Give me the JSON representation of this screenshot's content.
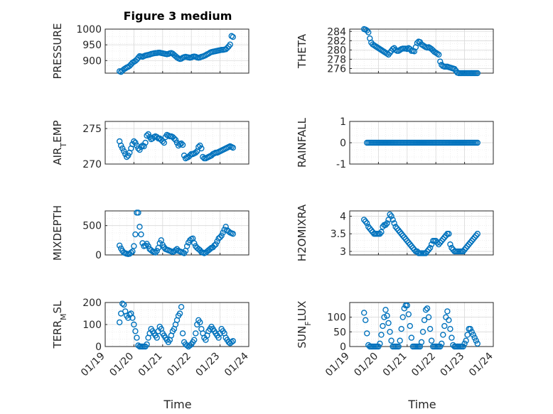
{
  "title": "Figure 3 medium",
  "xlabel": "Time",
  "marker_color": "#0072BD",
  "chart_data": [
    {
      "type": "scatter",
      "ylabel_main": "PRESSURE",
      "ylabel_sub": "",
      "ylabel_tail": "",
      "ylim": [
        860,
        1000
      ],
      "yticks": [
        900,
        950,
        1000
      ],
      "xlim": [
        0,
        5
      ],
      "x": [
        0.5,
        0.55,
        0.6,
        0.65,
        0.7,
        0.75,
        0.8,
        0.85,
        0.9,
        0.95,
        1.0,
        1.05,
        1.1,
        1.15,
        1.2,
        1.25,
        1.3,
        1.35,
        1.4,
        1.45,
        1.5,
        1.55,
        1.6,
        1.65,
        1.7,
        1.75,
        1.8,
        1.85,
        1.9,
        1.95,
        2.0,
        2.05,
        2.1,
        2.15,
        2.2,
        2.25,
        2.3,
        2.35,
        2.4,
        2.45,
        2.5,
        2.55,
        2.6,
        2.65,
        2.7,
        2.75,
        2.8,
        2.85,
        2.9,
        2.95,
        3.0,
        3.05,
        3.1,
        3.15,
        3.2,
        3.25,
        3.3,
        3.35,
        3.4,
        3.45,
        3.5,
        3.55,
        3.6,
        3.65,
        3.7,
        3.75,
        3.8,
        3.85,
        3.9,
        3.95,
        4.0,
        4.05,
        4.1,
        4.15,
        4.2,
        4.25,
        4.3,
        4.35,
        4.4,
        4.45
      ],
      "y": [
        866,
        864,
        868,
        872,
        875,
        878,
        880,
        883,
        888,
        893,
        896,
        899,
        903,
        909,
        914,
        913,
        912,
        914,
        916,
        917,
        918,
        919,
        921,
        922,
        923,
        924,
        924,
        925,
        925,
        924,
        923,
        922,
        921,
        920,
        921,
        923,
        924,
        922,
        918,
        914,
        910,
        907,
        905,
        906,
        909,
        911,
        912,
        911,
        910,
        909,
        910,
        912,
        913,
        912,
        910,
        909,
        910,
        912,
        913,
        915,
        917,
        920,
        922,
        925,
        927,
        928,
        929,
        930,
        931,
        932,
        933,
        934,
        934,
        935,
        936,
        940,
        945,
        951,
        978,
        975
      ]
    },
    {
      "type": "scatter",
      "ylabel_main": "THETA",
      "ylabel_sub": "",
      "ylabel_tail": "",
      "ylim": [
        275,
        284.5
      ],
      "yticks": [
        276,
        278,
        280,
        282,
        284
      ],
      "xlim": [
        0,
        5
      ],
      "x": [
        0.5,
        0.55,
        0.6,
        0.65,
        0.7,
        0.75,
        0.8,
        0.85,
        0.9,
        0.95,
        1.0,
        1.05,
        1.1,
        1.15,
        1.2,
        1.25,
        1.3,
        1.35,
        1.4,
        1.45,
        1.5,
        1.55,
        1.6,
        1.65,
        1.7,
        1.75,
        1.8,
        1.85,
        1.9,
        1.95,
        2.0,
        2.05,
        2.1,
        2.15,
        2.2,
        2.25,
        2.3,
        2.35,
        2.4,
        2.45,
        2.5,
        2.55,
        2.6,
        2.65,
        2.7,
        2.75,
        2.8,
        2.85,
        2.9,
        2.95,
        3.0,
        3.05,
        3.1,
        3.15,
        3.2,
        3.25,
        3.3,
        3.35,
        3.4,
        3.45,
        3.5,
        3.55,
        3.6,
        3.65,
        3.7,
        3.75,
        3.8,
        3.85,
        3.9,
        3.95,
        4.0,
        4.05,
        4.1,
        4.15,
        4.2,
        4.25,
        4.3,
        4.35,
        4.4,
        4.45
      ],
      "y": [
        284.6,
        284.4,
        284.2,
        283.8,
        282.5,
        281.6,
        281.2,
        281.0,
        280.8,
        280.6,
        280.4,
        280.2,
        280.0,
        279.8,
        279.6,
        279.4,
        279.2,
        279.0,
        279.4,
        279.8,
        280.2,
        280.4,
        280.0,
        279.8,
        279.8,
        280.0,
        280.2,
        280.3,
        280.3,
        280.3,
        280.2,
        280.4,
        280.2,
        279.8,
        279.8,
        279.7,
        280.6,
        281.5,
        281.8,
        281.7,
        281.2,
        281.0,
        280.8,
        280.6,
        280.5,
        280.6,
        280.4,
        280.2,
        279.9,
        279.6,
        279.4,
        279.2,
        279.0,
        277.5,
        276.8,
        276.5,
        276.4,
        276.4,
        276.4,
        276.3,
        276.2,
        276.1,
        276.0,
        275.9,
        275.5,
        275.1,
        275.0,
        275.0,
        275.0,
        275.0,
        275.0,
        275.0,
        275.0,
        275.0,
        275.0,
        275.0,
        275.0,
        275.0,
        275.0,
        275.0
      ]
    },
    {
      "type": "scatter",
      "ylabel_main": "AIR",
      "ylabel_sub": "T",
      "ylabel_tail": "EMP",
      "ylim": [
        270,
        276
      ],
      "yticks": [
        270,
        275
      ],
      "xlim": [
        0,
        5
      ],
      "x": [
        0.5,
        0.55,
        0.6,
        0.65,
        0.7,
        0.75,
        0.8,
        0.85,
        0.9,
        0.95,
        1.0,
        1.05,
        1.1,
        1.15,
        1.2,
        1.25,
        1.3,
        1.35,
        1.4,
        1.45,
        1.5,
        1.55,
        1.6,
        1.65,
        1.7,
        1.75,
        1.8,
        1.85,
        1.9,
        1.95,
        2.0,
        2.05,
        2.1,
        2.15,
        2.2,
        2.25,
        2.3,
        2.35,
        2.4,
        2.45,
        2.5,
        2.55,
        2.6,
        2.65,
        2.7,
        2.75,
        2.8,
        2.85,
        2.9,
        2.95,
        3.0,
        3.05,
        3.1,
        3.15,
        3.2,
        3.25,
        3.3,
        3.35,
        3.4,
        3.45,
        3.5,
        3.55,
        3.6,
        3.65,
        3.7,
        3.75,
        3.8,
        3.85,
        3.9,
        3.95,
        4.0,
        4.05,
        4.1,
        4.15,
        4.2,
        4.25,
        4.3,
        4.35,
        4.4,
        4.45
      ],
      "y": [
        273.2,
        272.6,
        272.2,
        271.8,
        271.4,
        271.0,
        271.2,
        271.6,
        272.2,
        272.8,
        273.2,
        273.0,
        272.6,
        272.2,
        272.0,
        272.4,
        272.6,
        272.5,
        273.0,
        274.0,
        274.2,
        273.8,
        273.5,
        273.6,
        273.8,
        273.9,
        273.8,
        273.6,
        273.6,
        273.4,
        273.2,
        273.0,
        273.8,
        274.1,
        274.0,
        273.9,
        273.9,
        273.8,
        273.6,
        273.4,
        273.0,
        272.6,
        272.8,
        272.9,
        272.7,
        271.2,
        270.8,
        270.9,
        271.0,
        271.2,
        271.4,
        271.4,
        271.5,
        271.6,
        271.8,
        272.4,
        272.6,
        272.2,
        271.0,
        270.8,
        270.8,
        270.9,
        271.0,
        271.1,
        271.2,
        271.4,
        271.5,
        271.6,
        271.6,
        271.7,
        271.8,
        271.9,
        272.0,
        272.1,
        272.2,
        272.3,
        272.4,
        272.5,
        272.4,
        272.3
      ]
    },
    {
      "type": "scatter",
      "ylabel_main": "RAINFALL",
      "ylabel_sub": "",
      "ylabel_tail": "",
      "ylim": [
        -1,
        1
      ],
      "yticks": [
        -1,
        0,
        1
      ],
      "xlim": [
        0,
        5
      ],
      "x": [
        0.6,
        0.65,
        0.7,
        0.75,
        0.8,
        0.85,
        0.9,
        0.95,
        1.0,
        1.05,
        1.1,
        1.15,
        1.2,
        1.25,
        1.3,
        1.35,
        1.4,
        1.45,
        1.5,
        1.55,
        1.6,
        1.65,
        1.7,
        1.75,
        1.8,
        1.85,
        1.9,
        1.95,
        2.0,
        2.05,
        2.1,
        2.15,
        2.2,
        2.25,
        2.3,
        2.35,
        2.4,
        2.45,
        2.5,
        2.55,
        2.6,
        2.65,
        2.7,
        2.75,
        2.8,
        2.85,
        2.9,
        2.95,
        3.0,
        3.05,
        3.1,
        3.15,
        3.2,
        3.25,
        3.3,
        3.35,
        3.4,
        3.45,
        3.5,
        3.55,
        3.6,
        3.65,
        3.7,
        3.75,
        3.8,
        3.85,
        3.9,
        3.95,
        4.0,
        4.05,
        4.1,
        4.15,
        4.2,
        4.25,
        4.3,
        4.35,
        4.4,
        4.45
      ],
      "y": [
        0,
        0,
        0,
        0,
        0,
        0,
        0,
        0,
        0,
        0,
        0,
        0,
        0,
        0,
        0,
        0,
        0,
        0,
        0,
        0,
        0,
        0,
        0,
        0,
        0,
        0,
        0,
        0,
        0,
        0,
        0,
        0,
        0,
        0,
        0,
        0,
        0,
        0,
        0,
        0,
        0,
        0,
        0,
        0,
        0,
        0,
        0,
        0,
        0,
        0,
        0,
        0,
        0,
        0,
        0,
        0,
        0,
        0,
        0,
        0,
        0,
        0,
        0,
        0,
        0,
        0,
        0,
        0,
        0,
        0,
        0,
        0,
        0,
        0,
        0,
        0,
        0,
        0
      ]
    },
    {
      "type": "scatter",
      "ylabel_main": "MIXDEPTH",
      "ylabel_sub": "",
      "ylabel_tail": "",
      "ylim": [
        0,
        750
      ],
      "yticks": [
        0,
        500
      ],
      "xlim": [
        0,
        5
      ],
      "x": [
        0.5,
        0.55,
        0.6,
        0.65,
        0.7,
        0.75,
        0.8,
        0.85,
        0.9,
        0.95,
        1.0,
        1.05,
        1.1,
        1.15,
        1.2,
        1.25,
        1.3,
        1.35,
        1.4,
        1.45,
        1.5,
        1.55,
        1.6,
        1.65,
        1.7,
        1.75,
        1.8,
        1.85,
        1.9,
        1.95,
        2.0,
        2.05,
        2.1,
        2.15,
        2.2,
        2.25,
        2.3,
        2.35,
        2.4,
        2.45,
        2.5,
        2.55,
        2.6,
        2.65,
        2.7,
        2.75,
        2.8,
        2.85,
        2.9,
        2.95,
        3.0,
        3.05,
        3.1,
        3.15,
        3.2,
        3.25,
        3.3,
        3.35,
        3.4,
        3.45,
        3.5,
        3.55,
        3.6,
        3.65,
        3.7,
        3.75,
        3.8,
        3.85,
        3.9,
        3.95,
        4.0,
        4.05,
        4.1,
        4.15,
        4.2,
        4.25,
        4.3,
        4.35,
        4.4,
        4.45
      ],
      "y": [
        160,
        110,
        70,
        40,
        30,
        20,
        15,
        20,
        40,
        60,
        150,
        350,
        720,
        720,
        480,
        350,
        200,
        150,
        160,
        190,
        150,
        100,
        80,
        60,
        50,
        40,
        70,
        120,
        200,
        250,
        170,
        130,
        100,
        90,
        80,
        70,
        60,
        50,
        60,
        80,
        100,
        70,
        60,
        50,
        40,
        30,
        70,
        150,
        210,
        250,
        270,
        280,
        200,
        150,
        120,
        100,
        80,
        50,
        40,
        30,
        40,
        60,
        80,
        100,
        120,
        130,
        160,
        180,
        230,
        280,
        300,
        330,
        380,
        430,
        480,
        420,
        400,
        380,
        370,
        360
      ]
    },
    {
      "type": "scatter",
      "ylabel_main": "H2OMIXRA",
      "ylabel_sub": "",
      "ylabel_tail": "",
      "ylim": [
        2.9,
        4.15
      ],
      "yticks": [
        3,
        3.5,
        4
      ],
      "xlim": [
        0,
        5
      ],
      "x": [
        0.5,
        0.55,
        0.6,
        0.65,
        0.7,
        0.75,
        0.8,
        0.85,
        0.9,
        0.95,
        1.0,
        1.05,
        1.1,
        1.15,
        1.2,
        1.25,
        1.3,
        1.35,
        1.4,
        1.45,
        1.5,
        1.55,
        1.6,
        1.65,
        1.7,
        1.75,
        1.8,
        1.85,
        1.9,
        1.95,
        2.0,
        2.05,
        2.1,
        2.15,
        2.2,
        2.25,
        2.3,
        2.35,
        2.4,
        2.45,
        2.5,
        2.55,
        2.6,
        2.65,
        2.7,
        2.75,
        2.8,
        2.85,
        2.9,
        2.95,
        3.0,
        3.05,
        3.1,
        3.15,
        3.2,
        3.25,
        3.3,
        3.35,
        3.4,
        3.45,
        3.5,
        3.55,
        3.6,
        3.65,
        3.7,
        3.75,
        3.8,
        3.85,
        3.9,
        3.95,
        4.0,
        4.05,
        4.1,
        4.15,
        4.2,
        4.25,
        4.3,
        4.35,
        4.4,
        4.45
      ],
      "y": [
        3.9,
        3.85,
        3.8,
        3.7,
        3.65,
        3.6,
        3.55,
        3.5,
        3.5,
        3.5,
        3.5,
        3.5,
        3.55,
        3.7,
        3.75,
        3.75,
        3.8,
        3.9,
        4.05,
        4.0,
        3.9,
        3.8,
        3.7,
        3.65,
        3.6,
        3.55,
        3.5,
        3.45,
        3.4,
        3.35,
        3.3,
        3.25,
        3.2,
        3.15,
        3.1,
        3.05,
        3.0,
        3.0,
        2.95,
        2.95,
        2.95,
        2.95,
        2.95,
        2.95,
        3.0,
        3.05,
        3.1,
        3.2,
        3.3,
        3.3,
        3.3,
        3.25,
        3.2,
        3.25,
        3.3,
        3.35,
        3.4,
        3.45,
        3.5,
        3.5,
        3.2,
        3.1,
        3.05,
        3.0,
        3.0,
        3.0,
        3.0,
        3.0,
        3.0,
        3.0,
        3.05,
        3.1,
        3.15,
        3.2,
        3.25,
        3.3,
        3.35,
        3.4,
        3.45,
        3.5
      ]
    },
    {
      "type": "scatter",
      "ylabel_main": "TERR",
      "ylabel_sub": "M",
      "ylabel_tail": "SL",
      "ylim": [
        0,
        200
      ],
      "yticks": [
        0,
        100,
        200
      ],
      "xlim": [
        0,
        5
      ],
      "x": [
        0.5,
        0.55,
        0.6,
        0.65,
        0.7,
        0.75,
        0.8,
        0.85,
        0.9,
        0.95,
        1.0,
        1.05,
        1.1,
        1.15,
        1.2,
        1.25,
        1.3,
        1.35,
        1.4,
        1.45,
        1.5,
        1.55,
        1.6,
        1.65,
        1.7,
        1.75,
        1.8,
        1.85,
        1.9,
        1.95,
        2.0,
        2.05,
        2.1,
        2.15,
        2.2,
        2.25,
        2.3,
        2.35,
        2.4,
        2.45,
        2.5,
        2.55,
        2.6,
        2.65,
        2.7,
        2.75,
        2.8,
        2.85,
        2.9,
        2.95,
        3.0,
        3.05,
        3.1,
        3.15,
        3.2,
        3.25,
        3.3,
        3.35,
        3.4,
        3.45,
        3.5,
        3.55,
        3.6,
        3.65,
        3.7,
        3.75,
        3.8,
        3.85,
        3.9,
        3.95,
        4.0,
        4.05,
        4.1,
        4.15,
        4.2,
        4.25,
        4.3,
        4.35,
        4.4,
        4.45
      ],
      "y": [
        110,
        150,
        195,
        190,
        160,
        140,
        130,
        145,
        150,
        130,
        100,
        70,
        40,
        5,
        0,
        0,
        0,
        0,
        0,
        10,
        40,
        60,
        80,
        70,
        60,
        50,
        40,
        70,
        90,
        80,
        60,
        50,
        40,
        30,
        20,
        30,
        50,
        70,
        80,
        100,
        120,
        140,
        150,
        180,
        60,
        20,
        10,
        5,
        0,
        5,
        10,
        20,
        30,
        60,
        100,
        120,
        110,
        80,
        60,
        40,
        30,
        50,
        70,
        80,
        90,
        80,
        70,
        60,
        50,
        40,
        60,
        80,
        70,
        60,
        40,
        30,
        20,
        15,
        20,
        25
      ]
    },
    {
      "type": "scatter",
      "ylabel_main": "SUN",
      "ylabel_sub": "F",
      "ylabel_tail": "LUX",
      "ylim": [
        0,
        150
      ],
      "yticks": [
        0,
        50,
        100
      ],
      "xlim": [
        0,
        5
      ],
      "x": [
        0.5,
        0.55,
        0.6,
        0.65,
        0.7,
        0.75,
        0.8,
        0.85,
        0.9,
        0.95,
        1.0,
        1.05,
        1.1,
        1.15,
        1.2,
        1.25,
        1.3,
        1.35,
        1.4,
        1.45,
        1.5,
        1.55,
        1.6,
        1.65,
        1.7,
        1.75,
        1.8,
        1.85,
        1.9,
        1.95,
        2.0,
        2.05,
        2.1,
        2.15,
        2.2,
        2.25,
        2.3,
        2.35,
        2.4,
        2.45,
        2.5,
        2.55,
        2.6,
        2.65,
        2.7,
        2.75,
        2.8,
        2.85,
        2.9,
        2.95,
        3.0,
        3.05,
        3.1,
        3.15,
        3.2,
        3.25,
        3.3,
        3.35,
        3.4,
        3.45,
        3.5,
        3.55,
        3.6,
        3.65,
        3.7,
        3.75,
        3.8,
        3.85,
        3.9,
        3.95,
        4.0,
        4.05,
        4.1,
        4.15,
        4.2,
        4.25,
        4.3,
        4.35,
        4.4,
        4.45
      ],
      "y": [
        115,
        90,
        45,
        5,
        0,
        0,
        0,
        0,
        0,
        0,
        0,
        10,
        40,
        70,
        100,
        125,
        105,
        80,
        50,
        20,
        0,
        0,
        0,
        0,
        0,
        20,
        60,
        100,
        130,
        140,
        140,
        110,
        70,
        30,
        0,
        0,
        0,
        0,
        0,
        0,
        15,
        50,
        90,
        125,
        130,
        100,
        60,
        20,
        0,
        0,
        0,
        0,
        0,
        0,
        10,
        40,
        70,
        100,
        120,
        90,
        60,
        30,
        5,
        0,
        0,
        0,
        0,
        0,
        0,
        0,
        10,
        20,
        40,
        60,
        60,
        50,
        40,
        30,
        20,
        10
      ]
    }
  ],
  "xticks": [
    "01/19",
    "01/20",
    "01/21",
    "01/22",
    "01/23",
    "01/24"
  ]
}
